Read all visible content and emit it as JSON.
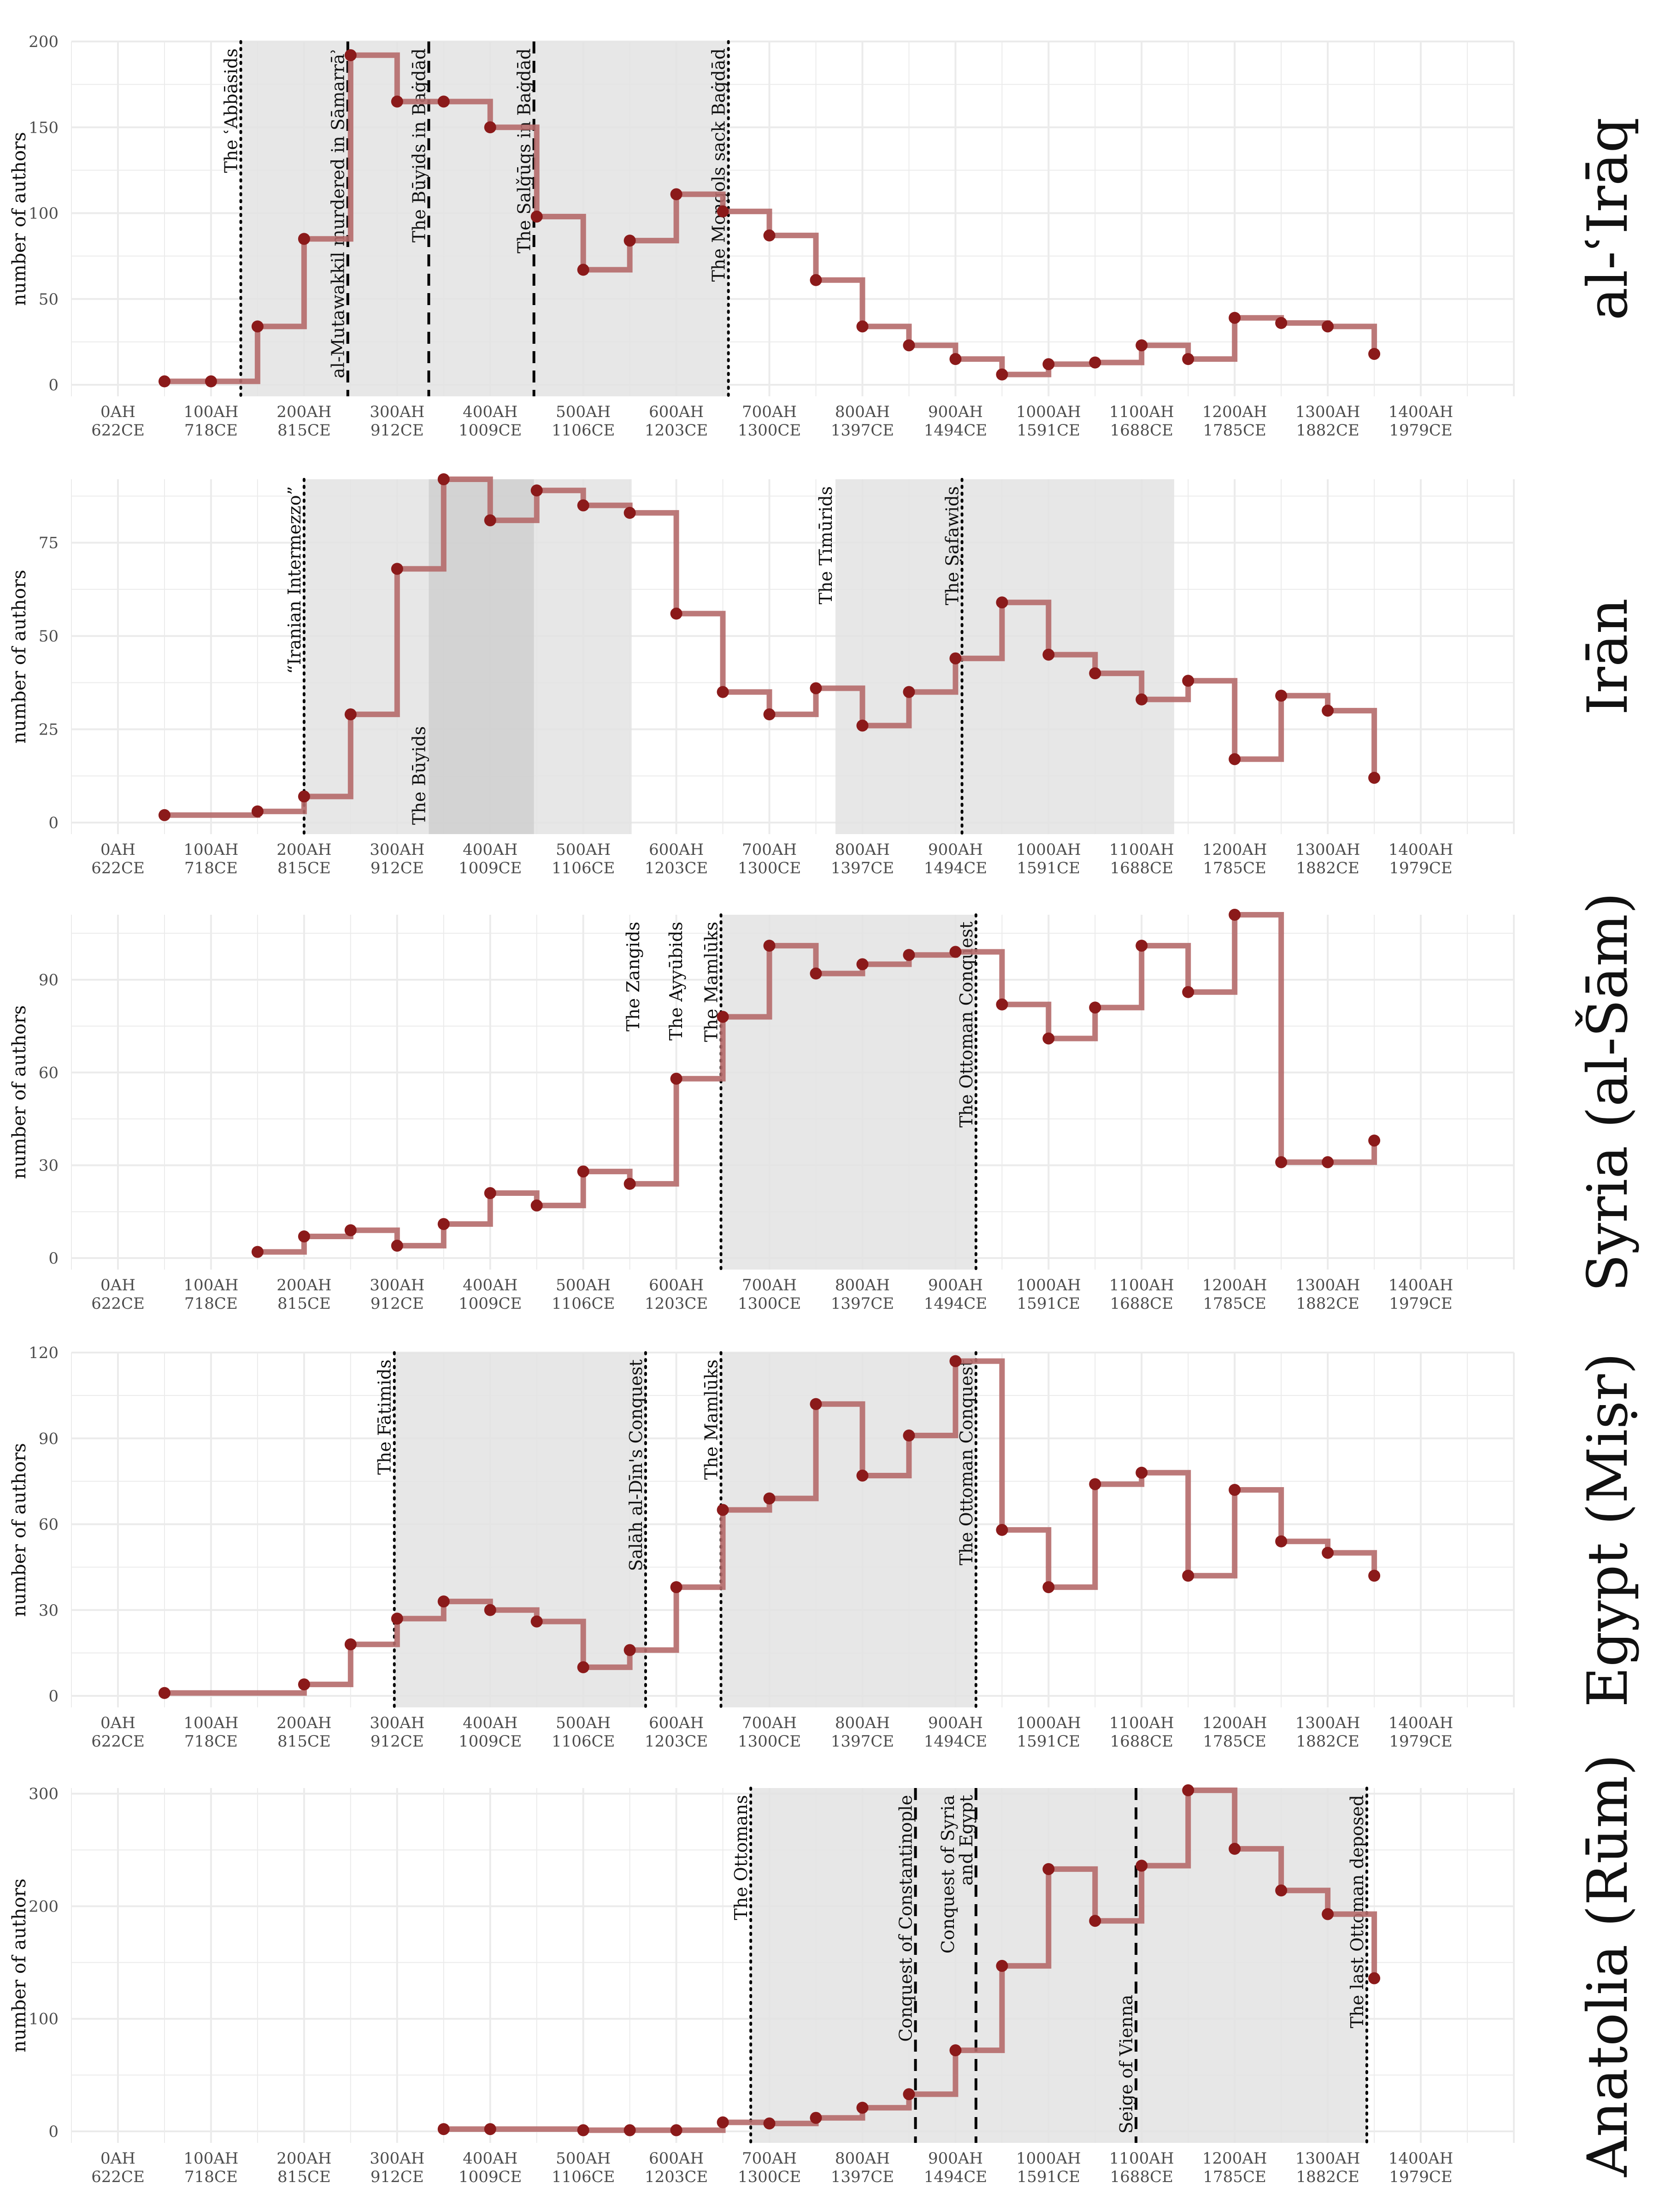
{
  "chart_data": [
    {
      "type": "line",
      "facet_label": "al-ʿIrāq",
      "ylabel": "number of authors",
      "ylim": [
        0,
        200
      ],
      "yticks": [
        0,
        50,
        100,
        150,
        200
      ],
      "xlim": [
        -50,
        1500
      ],
      "x_ticks": [
        {
          "hijri": 0,
          "ah": "0AH",
          "ce": "622CE"
        },
        {
          "hijri": 100,
          "ah": "100AH",
          "ce": "718CE"
        },
        {
          "hijri": 200,
          "ah": "200AH",
          "ce": "815CE"
        },
        {
          "hijri": 300,
          "ah": "300AH",
          "ce": "912CE"
        },
        {
          "hijri": 400,
          "ah": "400AH",
          "ce": "1009CE"
        },
        {
          "hijri": 500,
          "ah": "500AH",
          "ce": "1106CE"
        },
        {
          "hijri": 600,
          "ah": "600AH",
          "ce": "1203CE"
        },
        {
          "hijri": 700,
          "ah": "700AH",
          "ce": "1300CE"
        },
        {
          "hijri": 800,
          "ah": "800AH",
          "ce": "1397CE"
        },
        {
          "hijri": 900,
          "ah": "900AH",
          "ce": "1494CE"
        },
        {
          "hijri": 1000,
          "ah": "1000AH",
          "ce": "1591CE"
        },
        {
          "hijri": 1100,
          "ah": "1100AH",
          "ce": "1688CE"
        },
        {
          "hijri": 1200,
          "ah": "1200AH",
          "ce": "1785CE"
        },
        {
          "hijri": 1300,
          "ah": "1300AH",
          "ce": "1882CE"
        },
        {
          "hijri": 1400,
          "ah": "1400AH",
          "ce": "1979CE"
        }
      ],
      "x": [
        50,
        100,
        150,
        200,
        250,
        300,
        350,
        400,
        450,
        500,
        550,
        600,
        650,
        700,
        750,
        800,
        850,
        900,
        950,
        1000,
        1050,
        1100,
        1150,
        1200,
        1250,
        1300,
        1350
      ],
      "y": [
        2,
        2,
        34,
        85,
        192,
        165,
        165,
        150,
        98,
        67,
        84,
        111,
        101,
        87,
        61,
        34,
        23,
        15,
        6,
        12,
        13,
        23,
        15,
        39,
        36,
        34,
        18
      ],
      "shaded_periods": [
        {
          "start": 132,
          "end": 656,
          "tone": "light"
        }
      ],
      "events": [
        {
          "x": 132,
          "label": "The ʿAbbāsids",
          "style": "dotted"
        },
        {
          "x": 247,
          "label": "al-Mutawakkil murdered in Sāmarrāʾ",
          "style": "dashed"
        },
        {
          "x": 334,
          "label": "The Būyids in Baġdād",
          "style": "dashed"
        },
        {
          "x": 447,
          "label": "The Salǧūqs in Baġdād",
          "style": "dashed"
        },
        {
          "x": 656,
          "label": "The Mongols sack Baġdād",
          "style": "dotted"
        }
      ]
    },
    {
      "type": "line",
      "facet_label": "Irān",
      "ylabel": "number of authors",
      "ylim": [
        0,
        92
      ],
      "yticks": [
        0,
        25,
        50,
        75
      ],
      "xlim": [
        -50,
        1500
      ],
      "x_ticks": [
        {
          "hijri": 0,
          "ah": "0AH",
          "ce": "622CE"
        },
        {
          "hijri": 100,
          "ah": "100AH",
          "ce": "718CE"
        },
        {
          "hijri": 200,
          "ah": "200AH",
          "ce": "815CE"
        },
        {
          "hijri": 300,
          "ah": "300AH",
          "ce": "912CE"
        },
        {
          "hijri": 400,
          "ah": "400AH",
          "ce": "1009CE"
        },
        {
          "hijri": 500,
          "ah": "500AH",
          "ce": "1106CE"
        },
        {
          "hijri": 600,
          "ah": "600AH",
          "ce": "1203CE"
        },
        {
          "hijri": 700,
          "ah": "700AH",
          "ce": "1300CE"
        },
        {
          "hijri": 800,
          "ah": "800AH",
          "ce": "1397CE"
        },
        {
          "hijri": 900,
          "ah": "900AH",
          "ce": "1494CE"
        },
        {
          "hijri": 1000,
          "ah": "1000AH",
          "ce": "1591CE"
        },
        {
          "hijri": 1100,
          "ah": "1100AH",
          "ce": "1688CE"
        },
        {
          "hijri": 1200,
          "ah": "1200AH",
          "ce": "1785CE"
        },
        {
          "hijri": 1300,
          "ah": "1300AH",
          "ce": "1882CE"
        },
        {
          "hijri": 1400,
          "ah": "1400AH",
          "ce": "1979CE"
        }
      ],
      "x": [
        50,
        150,
        200,
        250,
        300,
        350,
        400,
        450,
        500,
        550,
        600,
        650,
        700,
        750,
        800,
        850,
        900,
        950,
        1000,
        1050,
        1100,
        1150,
        1200,
        1250,
        1300,
        1350
      ],
      "y": [
        2,
        3,
        7,
        29,
        68,
        92,
        81,
        89,
        85,
        83,
        56,
        35,
        29,
        36,
        26,
        35,
        44,
        59,
        45,
        40,
        33,
        38,
        17,
        34,
        30,
        12
      ],
      "shaded_periods": [
        {
          "start": 200,
          "end": 552,
          "tone": "light"
        },
        {
          "start": 334,
          "end": 447,
          "tone": "dark"
        },
        {
          "start": 771,
          "end": 1135,
          "tone": "light"
        }
      ],
      "events": [
        {
          "x": 200,
          "label": "“Iranian Intermezzo”",
          "style": "dotted"
        },
        {
          "x": 334,
          "label": "The Būyids",
          "style": "none",
          "label_pos": "bottom"
        },
        {
          "x": 771,
          "label": "The Tīmūrids",
          "style": "none"
        },
        {
          "x": 907,
          "label": "The Ṣafawids",
          "style": "dotted"
        }
      ]
    },
    {
      "type": "line",
      "facet_label": "Syria (al-Šām)",
      "ylabel": "number of authors",
      "ylim": [
        0,
        111
      ],
      "yticks": [
        0,
        30,
        60,
        90
      ],
      "xlim": [
        -50,
        1500
      ],
      "x_ticks": [
        {
          "hijri": 0,
          "ah": "0AH",
          "ce": "622CE"
        },
        {
          "hijri": 100,
          "ah": "100AH",
          "ce": "718CE"
        },
        {
          "hijri": 200,
          "ah": "200AH",
          "ce": "815CE"
        },
        {
          "hijri": 300,
          "ah": "300AH",
          "ce": "912CE"
        },
        {
          "hijri": 400,
          "ah": "400AH",
          "ce": "1009CE"
        },
        {
          "hijri": 500,
          "ah": "500AH",
          "ce": "1106CE"
        },
        {
          "hijri": 600,
          "ah": "600AH",
          "ce": "1203CE"
        },
        {
          "hijri": 700,
          "ah": "700AH",
          "ce": "1300CE"
        },
        {
          "hijri": 800,
          "ah": "800AH",
          "ce": "1397CE"
        },
        {
          "hijri": 900,
          "ah": "900AH",
          "ce": "1494CE"
        },
        {
          "hijri": 1000,
          "ah": "1000AH",
          "ce": "1591CE"
        },
        {
          "hijri": 1100,
          "ah": "1100AH",
          "ce": "1688CE"
        },
        {
          "hijri": 1200,
          "ah": "1200AH",
          "ce": "1785CE"
        },
        {
          "hijri": 1300,
          "ah": "1300AH",
          "ce": "1882CE"
        },
        {
          "hijri": 1400,
          "ah": "1400AH",
          "ce": "1979CE"
        }
      ],
      "x": [
        150,
        200,
        250,
        300,
        350,
        400,
        450,
        500,
        550,
        600,
        650,
        700,
        750,
        800,
        850,
        900,
        950,
        1000,
        1050,
        1100,
        1150,
        1200,
        1250,
        1300,
        1350
      ],
      "y": [
        2,
        7,
        9,
        4,
        11,
        21,
        17,
        28,
        24,
        58,
        78,
        101,
        92,
        95,
        98,
        99,
        82,
        71,
        81,
        101,
        86,
        111,
        31,
        31,
        38
      ],
      "shaded_periods": [
        {
          "start": 648,
          "end": 922,
          "tone": "light"
        }
      ],
      "events": [
        {
          "x": 564,
          "label": "The Zangids",
          "style": "none"
        },
        {
          "x": 610,
          "label": "The Ayyūbids",
          "style": "none"
        },
        {
          "x": 648,
          "label": "The Mamlūks",
          "style": "dotted"
        },
        {
          "x": 922,
          "label": "The Ottoman Conquest",
          "style": "dotted"
        }
      ]
    },
    {
      "type": "line",
      "facet_label": "Egypt (Miṣr)",
      "ylabel": "number of authors",
      "ylim": [
        0,
        120
      ],
      "yticks": [
        0,
        30,
        60,
        90,
        120
      ],
      "xlim": [
        -50,
        1500
      ],
      "x_ticks": [
        {
          "hijri": 0,
          "ah": "0AH",
          "ce": "622CE"
        },
        {
          "hijri": 100,
          "ah": "100AH",
          "ce": "718CE"
        },
        {
          "hijri": 200,
          "ah": "200AH",
          "ce": "815CE"
        },
        {
          "hijri": 300,
          "ah": "300AH",
          "ce": "912CE"
        },
        {
          "hijri": 400,
          "ah": "400AH",
          "ce": "1009CE"
        },
        {
          "hijri": 500,
          "ah": "500AH",
          "ce": "1106CE"
        },
        {
          "hijri": 600,
          "ah": "600AH",
          "ce": "1203CE"
        },
        {
          "hijri": 700,
          "ah": "700AH",
          "ce": "1300CE"
        },
        {
          "hijri": 800,
          "ah": "800AH",
          "ce": "1397CE"
        },
        {
          "hijri": 900,
          "ah": "900AH",
          "ce": "1494CE"
        },
        {
          "hijri": 1000,
          "ah": "1000AH",
          "ce": "1591CE"
        },
        {
          "hijri": 1100,
          "ah": "1100AH",
          "ce": "1688CE"
        },
        {
          "hijri": 1200,
          "ah": "1200AH",
          "ce": "1785CE"
        },
        {
          "hijri": 1300,
          "ah": "1300AH",
          "ce": "1882CE"
        },
        {
          "hijri": 1400,
          "ah": "1400AH",
          "ce": "1979CE"
        }
      ],
      "x": [
        50,
        200,
        250,
        300,
        350,
        400,
        450,
        500,
        550,
        600,
        650,
        700,
        750,
        800,
        850,
        900,
        950,
        1000,
        1050,
        1100,
        1150,
        1200,
        1250,
        1300,
        1350
      ],
      "y": [
        1,
        4,
        18,
        27,
        33,
        30,
        26,
        10,
        16,
        38,
        65,
        69,
        102,
        77,
        91,
        117,
        58,
        38,
        74,
        78,
        42,
        72,
        54,
        50,
        42
      ],
      "shaded_periods": [
        {
          "start": 297,
          "end": 567,
          "tone": "light"
        },
        {
          "start": 648,
          "end": 922,
          "tone": "light"
        }
      ],
      "events": [
        {
          "x": 297,
          "label": "The Fāṭimids",
          "style": "dotted"
        },
        {
          "x": 567,
          "label": "Ṣalāḥ al-Dīn's Conquest",
          "style": "dotted"
        },
        {
          "x": 648,
          "label": "The Mamlūks",
          "style": "dotted"
        },
        {
          "x": 922,
          "label": "The Ottoman Conquest",
          "style": "dotted"
        }
      ]
    },
    {
      "type": "line",
      "facet_label": "Anatolia (Rūm)",
      "ylabel": "number of authors",
      "ylim": [
        0,
        305
      ],
      "yticks": [
        0,
        100,
        200,
        300
      ],
      "xlim": [
        -50,
        1500
      ],
      "x_ticks": [
        {
          "hijri": 0,
          "ah": "0AH",
          "ce": "622CE"
        },
        {
          "hijri": 100,
          "ah": "100AH",
          "ce": "718CE"
        },
        {
          "hijri": 200,
          "ah": "200AH",
          "ce": "815CE"
        },
        {
          "hijri": 300,
          "ah": "300AH",
          "ce": "912CE"
        },
        {
          "hijri": 400,
          "ah": "400AH",
          "ce": "1009CE"
        },
        {
          "hijri": 500,
          "ah": "500AH",
          "ce": "1106CE"
        },
        {
          "hijri": 600,
          "ah": "600AH",
          "ce": "1203CE"
        },
        {
          "hijri": 700,
          "ah": "700AH",
          "ce": "1300CE"
        },
        {
          "hijri": 800,
          "ah": "800AH",
          "ce": "1397CE"
        },
        {
          "hijri": 900,
          "ah": "900AH",
          "ce": "1494CE"
        },
        {
          "hijri": 1000,
          "ah": "1000AH",
          "ce": "1591CE"
        },
        {
          "hijri": 1100,
          "ah": "1100AH",
          "ce": "1688CE"
        },
        {
          "hijri": 1200,
          "ah": "1200AH",
          "ce": "1785CE"
        },
        {
          "hijri": 1300,
          "ah": "1300AH",
          "ce": "1882CE"
        },
        {
          "hijri": 1400,
          "ah": "1400AH",
          "ce": "1979CE"
        }
      ],
      "x": [
        350,
        400,
        500,
        550,
        600,
        650,
        700,
        750,
        800,
        850,
        900,
        950,
        1000,
        1050,
        1100,
        1150,
        1200,
        1250,
        1300,
        1350
      ],
      "y": [
        2,
        2,
        1,
        1,
        1,
        8,
        7,
        12,
        21,
        33,
        72,
        147,
        233,
        187,
        236,
        303,
        251,
        214,
        193,
        136
      ],
      "shaded_periods": [
        {
          "start": 680,
          "end": 1342,
          "tone": "light"
        }
      ],
      "events": [
        {
          "x": 680,
          "label": "The Ottomans",
          "style": "dotted"
        },
        {
          "x": 857,
          "label": "Conquest of Constantinople",
          "style": "dashed"
        },
        {
          "x": 922,
          "label": "Conquest of Syria and Egypt",
          "style": "dashed",
          "label_lines": [
            "Conquest of Syria",
            "and Egypt"
          ]
        },
        {
          "x": 1094,
          "label": "Seige of Vienna",
          "style": "dashed",
          "label_pos": "bottom"
        },
        {
          "x": 1342,
          "label": "The last Ottoman deposed",
          "style": "dotted"
        }
      ]
    }
  ],
  "colors": {
    "series": "#b56a6a",
    "point": "#8b1a1a",
    "shade_light": "#e3e3e3",
    "shade_dark": "#cccccc",
    "grid": "#ebebeb",
    "text": "#4d4d4d"
  }
}
